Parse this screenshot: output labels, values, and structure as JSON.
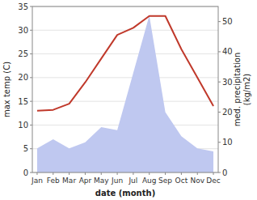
{
  "chart_data": {
    "type": "line",
    "categories": [
      "Jan",
      "Feb",
      "Mar",
      "Apr",
      "May",
      "Jun",
      "Jul",
      "Aug",
      "Sep",
      "Oct",
      "Nov",
      "Dec"
    ],
    "series": [
      {
        "type": "area",
        "axis": "y2",
        "color": "#bfc8f0",
        "values": [
          8,
          11,
          8,
          10,
          15,
          14,
          33,
          52,
          20,
          12,
          8,
          7
        ]
      },
      {
        "type": "line",
        "color": "#c0392b",
        "values": [
          13.0,
          13.2,
          14.5,
          19.0,
          24.0,
          29.0,
          30.5,
          33.0,
          33.0,
          26.0,
          20.0,
          14.0
        ]
      }
    ],
    "xlabel": "date (month)",
    "ylabel": "max temp (C)",
    "y2label": "med. precipitation\n(kg/m2)",
    "ylim": [
      0,
      35
    ],
    "yticks": [
      0,
      5,
      10,
      15,
      20,
      25,
      30,
      35
    ],
    "y2lim": [
      0,
      55
    ],
    "y2ticks": [
      0,
      10,
      20,
      30,
      40,
      50
    ],
    "grid": true
  }
}
